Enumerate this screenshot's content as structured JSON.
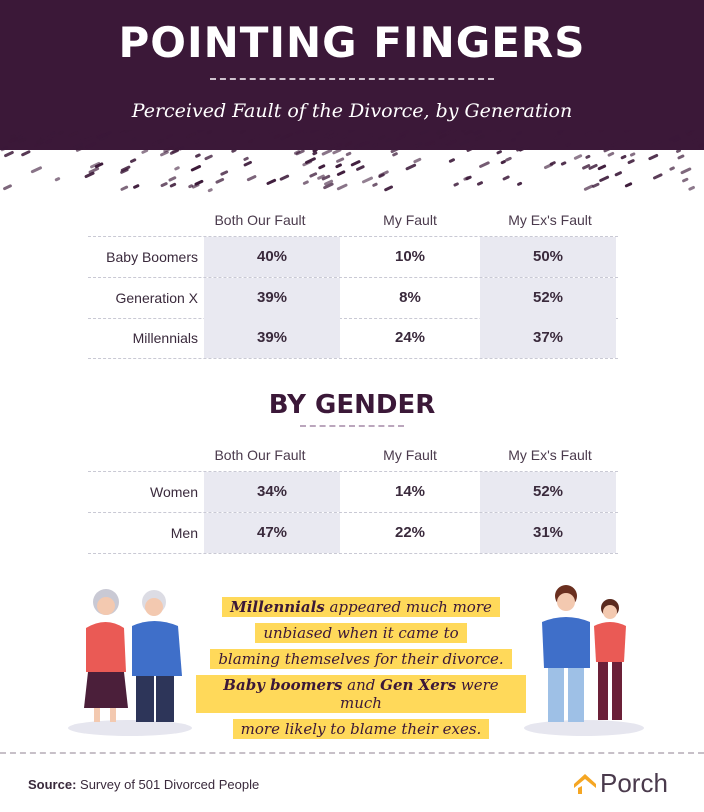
{
  "header": {
    "title": "POINTING FINGERS",
    "subtitle": "Perceived Fault of the Divorce, by Generation"
  },
  "columns": [
    "Both Our Fault",
    "My Fault",
    "My Ex's Fault"
  ],
  "generation_table": {
    "rows": [
      {
        "label": "Baby Boomers",
        "values": [
          "40%",
          "10%",
          "50%"
        ]
      },
      {
        "label": "Generation X",
        "values": [
          "39%",
          "8%",
          "52%"
        ]
      },
      {
        "label": "Millennials",
        "values": [
          "39%",
          "24%",
          "37%"
        ]
      }
    ]
  },
  "gender_section": {
    "title": "BY GENDER",
    "rows": [
      {
        "label": "Women",
        "values": [
          "34%",
          "14%",
          "52%"
        ]
      },
      {
        "label": "Men",
        "values": [
          "47%",
          "22%",
          "31%"
        ]
      }
    ]
  },
  "callout": {
    "l1_bold": "Millennials",
    "l1_rest": " appeared much more",
    "l2": "unbiased when it came to",
    "l3": "blaming themselves for their divorce.",
    "l4_bold1": "Baby boomers",
    "l4_mid": " and ",
    "l4_bold2": "Gen Xers",
    "l4_rest": " were much",
    "l5": "more likely to blame their exes."
  },
  "footer": {
    "source_label": "Source:",
    "source_text": " Survey of 501 Divorced People",
    "logo": "Porch"
  },
  "colors": {
    "header_bg": "#3b1838",
    "highlight": "#ffd95a",
    "cell_shade": "#e9e9f1",
    "logo_orange": "#f5a623"
  }
}
